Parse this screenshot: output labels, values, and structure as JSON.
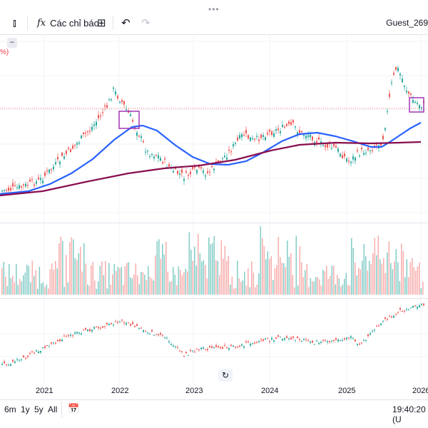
{
  "toolbar": {
    "handle": "•••",
    "indicators_label": "Các chỉ báo",
    "fx_glyph": "fx",
    "undo_glyph": "↶",
    "redo_glyph": "↷",
    "candle_glyph": "⫾",
    "grid_glyph": "⊞",
    "user": "Guest_269"
  },
  "pane_labels": {
    "percent_fragment": "%)"
  },
  "controls": {
    "minus_glyph": "−",
    "reset_glyph": "↻"
  },
  "x_axis": {
    "ticks": [
      "2021",
      "2022",
      "2023",
      "2024",
      "2025",
      "2026"
    ]
  },
  "bottom_bar": {
    "ranges": [
      "6m",
      "1y",
      "5y",
      "All"
    ],
    "calendar_glyph": "📅",
    "time": "19:40:20 (U"
  },
  "colors": {
    "up": "#26a69a",
    "down": "#ef5350",
    "ma_fast": "#2962ff",
    "ma_slow": "#880e4f",
    "highlight_box": "#9c27b0",
    "price_line": "#f23645"
  }
}
